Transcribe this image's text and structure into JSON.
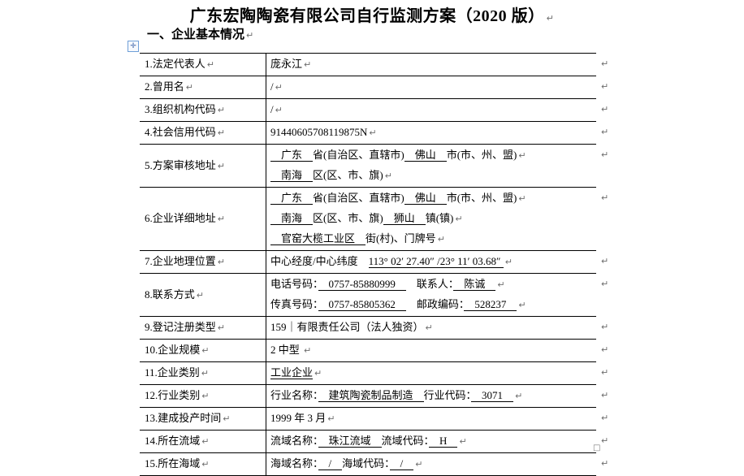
{
  "page": {
    "title": "广东宏陶陶瓷有限公司自行监测方案（2020 版）",
    "section_heading": "一、企业基本情况",
    "pilcrow": "↵",
    "move_icon": "✛",
    "end_mark": "□"
  },
  "table": {
    "rows": [
      {
        "label": "1.法定代表人",
        "lines": [
          [
            {
              "t": "庞永江"
            }
          ]
        ]
      },
      {
        "label": "2.曾用名",
        "lines": [
          [
            {
              "t": "/"
            }
          ]
        ]
      },
      {
        "label": "3.组织机构代码",
        "lines": [
          [
            {
              "t": "/"
            }
          ]
        ]
      },
      {
        "label": "4.社会信用代码",
        "lines": [
          [
            {
              "t": "91440605708119875N"
            }
          ]
        ]
      },
      {
        "label": "5.方案审核地址",
        "lines": [
          [
            {
              "t": "　广东　",
              "u": true
            },
            {
              "t": "省(自治区、直辖市)"
            },
            {
              "t": "　佛山　",
              "u": true
            },
            {
              "t": "市(市、州、盟)"
            }
          ],
          [
            {
              "t": "　南海　",
              "u": true
            },
            {
              "t": "区(区、市、旗)"
            }
          ]
        ]
      },
      {
        "label": "6.企业详细地址",
        "lines": [
          [
            {
              "t": "　广东　",
              "u": true
            },
            {
              "t": "省(自治区、直辖市)"
            },
            {
              "t": "　佛山　",
              "u": true
            },
            {
              "t": "市(市、州、盟)"
            }
          ],
          [
            {
              "t": "　南海　",
              "u": true
            },
            {
              "t": "区(区、市、旗)"
            },
            {
              "t": "　狮山　",
              "u": true
            },
            {
              "t": "镇(镇)"
            }
          ],
          [
            {
              "t": "　官窑大榄工业区　",
              "u": true
            },
            {
              "t": "街(村)、门牌号"
            }
          ]
        ]
      },
      {
        "label": "7.企业地理位置",
        "lines": [
          [
            {
              "t": "中心经度/中心纬度　"
            },
            {
              "t": "113° 02′ 27.40″ /23° 11′ 03.68″ ",
              "u": true
            }
          ]
        ]
      },
      {
        "label": "8.联系方式",
        "lines": [
          [
            {
              "t": "电话号码："
            },
            {
              "t": "　0757-85880999　",
              "u": true
            },
            {
              "t": "　联系人："
            },
            {
              "t": "　陈诚　",
              "u": true
            }
          ],
          [
            {
              "t": "传真号码："
            },
            {
              "t": "　0757-85805362　",
              "u": true
            },
            {
              "t": "　邮政编码："
            },
            {
              "t": "　528237　",
              "u": true
            }
          ]
        ]
      },
      {
        "label": "9.登记注册类型",
        "lines": [
          [
            {
              "t": "159｜有限责任公司（法人独资）"
            }
          ]
        ]
      },
      {
        "label": "10.企业规模",
        "lines": [
          [
            {
              "t": "2 中型 "
            }
          ]
        ]
      },
      {
        "label": "11.企业类别",
        "lines": [
          [
            {
              "t": "工业企业",
              "u": true
            }
          ]
        ]
      },
      {
        "label": "12.行业类别",
        "lines": [
          [
            {
              "t": "行业名称："
            },
            {
              "t": "　建筑陶瓷制品制造　",
              "u": true
            },
            {
              "t": "行业代码："
            },
            {
              "t": "　3071　",
              "u": true
            }
          ]
        ]
      },
      {
        "label": "13.建成投产时间",
        "lines": [
          [
            {
              "t": "1999 年 3 月"
            }
          ]
        ]
      },
      {
        "label": "14.所在流域",
        "lines": [
          [
            {
              "t": "流域名称："
            },
            {
              "t": "　珠江流域　",
              "u": true
            },
            {
              "t": "流域代码："
            },
            {
              "t": "　H　",
              "u": true
            }
          ]
        ]
      },
      {
        "label": "15.所在海域",
        "lines": [
          [
            {
              "t": "海域名称："
            },
            {
              "t": "　/　",
              "u": true
            },
            {
              "t": "海域代码："
            },
            {
              "t": "　/　",
              "u": true
            }
          ]
        ]
      }
    ]
  }
}
